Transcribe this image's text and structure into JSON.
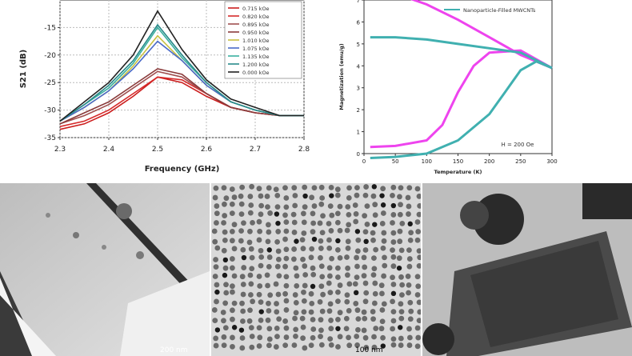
{
  "chart_data": [
    {
      "type": "line",
      "xlabel": "Frequency (GHz)",
      "ylabel": "S21 (dB)",
      "xlim": [
        2.3,
        2.8
      ],
      "ylim": [
        -35,
        -10
      ],
      "xticks": [
        "2.3",
        "2.4",
        "2.5",
        "2.6",
        "2.7",
        "2.8"
      ],
      "yticks": [
        "-15",
        "-20",
        "-25",
        "-30",
        "-35"
      ],
      "legend_position": "top-right",
      "grid": true,
      "series": [
        {
          "name": "0.715 kOe",
          "color": "#cc1e1e",
          "x": [
            2.3,
            2.35,
            2.4,
            2.45,
            2.5,
            2.55,
            2.6,
            2.65,
            2.7,
            2.75,
            2.8
          ],
          "y": [
            -33.5,
            -32.5,
            -30.5,
            -27.5,
            -24.0,
            -25.0,
            -27.5,
            -29.5,
            -30.5,
            -31.0,
            -31.0
          ]
        },
        {
          "name": "0.820 kOe",
          "color": "#d62a2a",
          "x": [
            2.3,
            2.35,
            2.4,
            2.45,
            2.5,
            2.55,
            2.6,
            2.65,
            2.7,
            2.75,
            2.8
          ],
          "y": [
            -33.0,
            -32.0,
            -30.0,
            -27.0,
            -24.0,
            -24.5,
            -27.0,
            -29.5,
            -30.5,
            -31.0,
            -31.0
          ]
        },
        {
          "name": "0.895 kOe",
          "color": "#a05050",
          "x": [
            2.3,
            2.35,
            2.4,
            2.45,
            2.5,
            2.55,
            2.6,
            2.65,
            2.7,
            2.75,
            2.8
          ],
          "y": [
            -32.5,
            -31.0,
            -29.0,
            -26.0,
            -23.0,
            -24.0,
            -27.0,
            -29.5,
            -30.5,
            -31.0,
            -31.0
          ]
        },
        {
          "name": "0.950 kOe",
          "color": "#8a3a3a",
          "x": [
            2.3,
            2.35,
            2.4,
            2.45,
            2.5,
            2.55,
            2.6,
            2.65,
            2.7,
            2.75,
            2.8
          ],
          "y": [
            -32.5,
            -30.5,
            -28.5,
            -25.5,
            -22.5,
            -23.5,
            -27.0,
            -29.5,
            -30.5,
            -31.0,
            -31.0
          ]
        },
        {
          "name": "1.010 kOe",
          "color": "#c8c040",
          "x": [
            2.3,
            2.35,
            2.4,
            2.45,
            2.5,
            2.55,
            2.6,
            2.65,
            2.7,
            2.75,
            2.8
          ],
          "y": [
            -32.0,
            -29.5,
            -26.5,
            -22.0,
            -16.5,
            -21.0,
            -25.5,
            -28.5,
            -30.0,
            -31.0,
            -31.0
          ]
        },
        {
          "name": "1.075 kOe",
          "color": "#4a6ac8",
          "x": [
            2.3,
            2.35,
            2.4,
            2.45,
            2.5,
            2.55,
            2.6,
            2.65,
            2.7,
            2.75,
            2.8
          ],
          "y": [
            -32.0,
            -29.5,
            -26.5,
            -22.5,
            -17.5,
            -21.0,
            -25.5,
            -28.5,
            -30.0,
            -31.0,
            -31.0
          ]
        },
        {
          "name": "1.135 kOe",
          "color": "#3ab0a0",
          "x": [
            2.3,
            2.35,
            2.4,
            2.45,
            2.5,
            2.55,
            2.6,
            2.65,
            2.7,
            2.75,
            2.8
          ],
          "y": [
            -32.0,
            -29.0,
            -26.0,
            -21.5,
            -15.0,
            -20.5,
            -25.0,
            -28.5,
            -30.0,
            -31.0,
            -31.0
          ]
        },
        {
          "name": "1.200 kOe",
          "color": "#2a8a8a",
          "x": [
            2.3,
            2.35,
            2.4,
            2.45,
            2.5,
            2.55,
            2.6,
            2.65,
            2.7,
            2.75,
            2.8
          ],
          "y": [
            -32.0,
            -29.0,
            -25.5,
            -21.0,
            -14.5,
            -20.0,
            -25.0,
            -28.5,
            -30.0,
            -31.0,
            -31.0
          ]
        },
        {
          "name": "0.000 kOe",
          "color": "#222222",
          "x": [
            2.3,
            2.35,
            2.4,
            2.45,
            2.5,
            2.55,
            2.6,
            2.65,
            2.7,
            2.75,
            2.8
          ],
          "y": [
            -32.0,
            -28.5,
            -25.0,
            -20.0,
            -12.0,
            -19.0,
            -24.5,
            -28.0,
            -29.5,
            -31.0,
            -31.0
          ]
        }
      ]
    },
    {
      "type": "scatter",
      "xlabel": "Temperature (K)",
      "ylabel": "Magnetization (emu/g)",
      "xlim": [
        0,
        300
      ],
      "ylim": [
        0,
        7
      ],
      "xticks": [
        "0",
        "50",
        "100",
        "150",
        "200",
        "250",
        "300"
      ],
      "yticks": [
        "0",
        "1",
        "2",
        "3",
        "4",
        "5",
        "6",
        "7"
      ],
      "legend_position": "top-right",
      "annotation": "H = 200 Oe",
      "series": [
        {
          "name": "",
          "color": "#ee44ee",
          "x": [
            10,
            50,
            100,
            150,
            200,
            250,
            300
          ],
          "y": [
            7.5,
            7.3,
            6.8,
            6.1,
            5.3,
            4.5,
            3.9
          ]
        },
        {
          "name": "",
          "color": "#ee44ee",
          "x": [
            10,
            50,
            100,
            125,
            150,
            175,
            200,
            250,
            300
          ],
          "y": [
            0.3,
            0.35,
            0.6,
            1.3,
            2.8,
            4.0,
            4.6,
            4.7,
            3.9
          ]
        },
        {
          "name": "Nanoparticle-Filled MWCNTs",
          "color": "#40b0b0",
          "x": [
            10,
            50,
            100,
            150,
            200,
            250,
            300
          ],
          "y": [
            5.3,
            5.3,
            5.2,
            5.0,
            4.8,
            4.6,
            3.9
          ]
        },
        {
          "name": "Nanoparticle-Filled MWCNTs",
          "color": "#40b0b0",
          "x": [
            10,
            50,
            100,
            150,
            200,
            225,
            250,
            275,
            300
          ],
          "y": [
            -0.2,
            -0.15,
            0.0,
            0.6,
            1.8,
            2.8,
            3.8,
            4.2,
            3.9
          ]
        }
      ]
    }
  ],
  "micrographs": [
    {
      "scale_label": "200 nm"
    },
    {
      "scale_label": "100 nm"
    },
    {
      "scale_label": ""
    }
  ]
}
